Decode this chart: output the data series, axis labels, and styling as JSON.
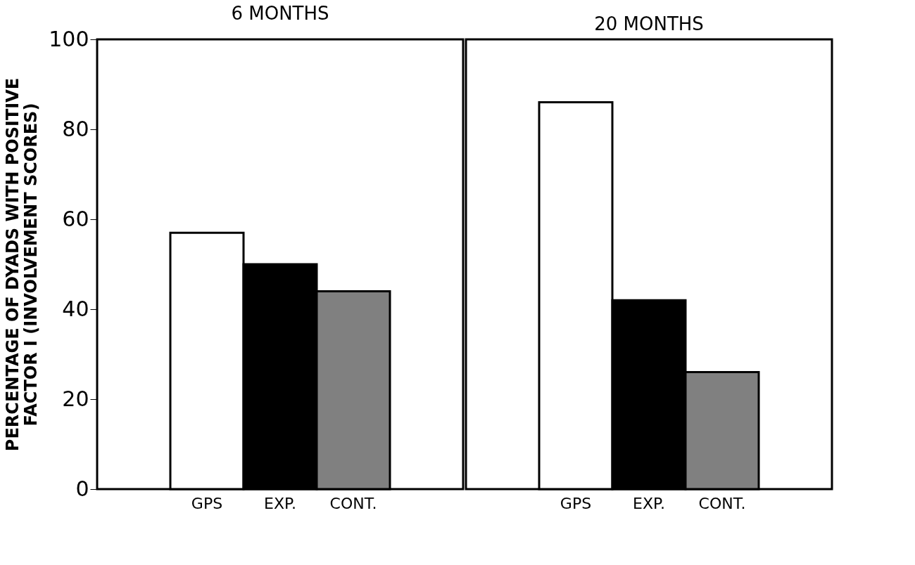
{
  "chart_data": [
    {
      "type": "bar",
      "title": "6 MONTHS",
      "ylabel": "PERCENTAGE OF DYADS WITH POSITIVE\nFACTOR I (INVOLVEMENT SCORES)",
      "categories": [
        "GPS",
        "EXP.",
        "CONT."
      ],
      "values": [
        57,
        50,
        44
      ],
      "colors": [
        "#ffffff",
        "#000000",
        "#808080"
      ],
      "ylim": [
        0,
        100
      ],
      "yticks": [
        0,
        20,
        40,
        60,
        80,
        100
      ]
    },
    {
      "type": "bar",
      "title": "20 MONTHS",
      "categories": [
        "GPS",
        "EXP.",
        "CONT."
      ],
      "values": [
        86,
        42,
        26
      ],
      "colors": [
        "#ffffff",
        "#000000",
        "#808080"
      ],
      "ylim": [
        0,
        100
      ],
      "yticks": [
        0,
        20,
        40,
        60,
        80,
        100
      ],
      "tick_labels": "x"
    }
  ]
}
